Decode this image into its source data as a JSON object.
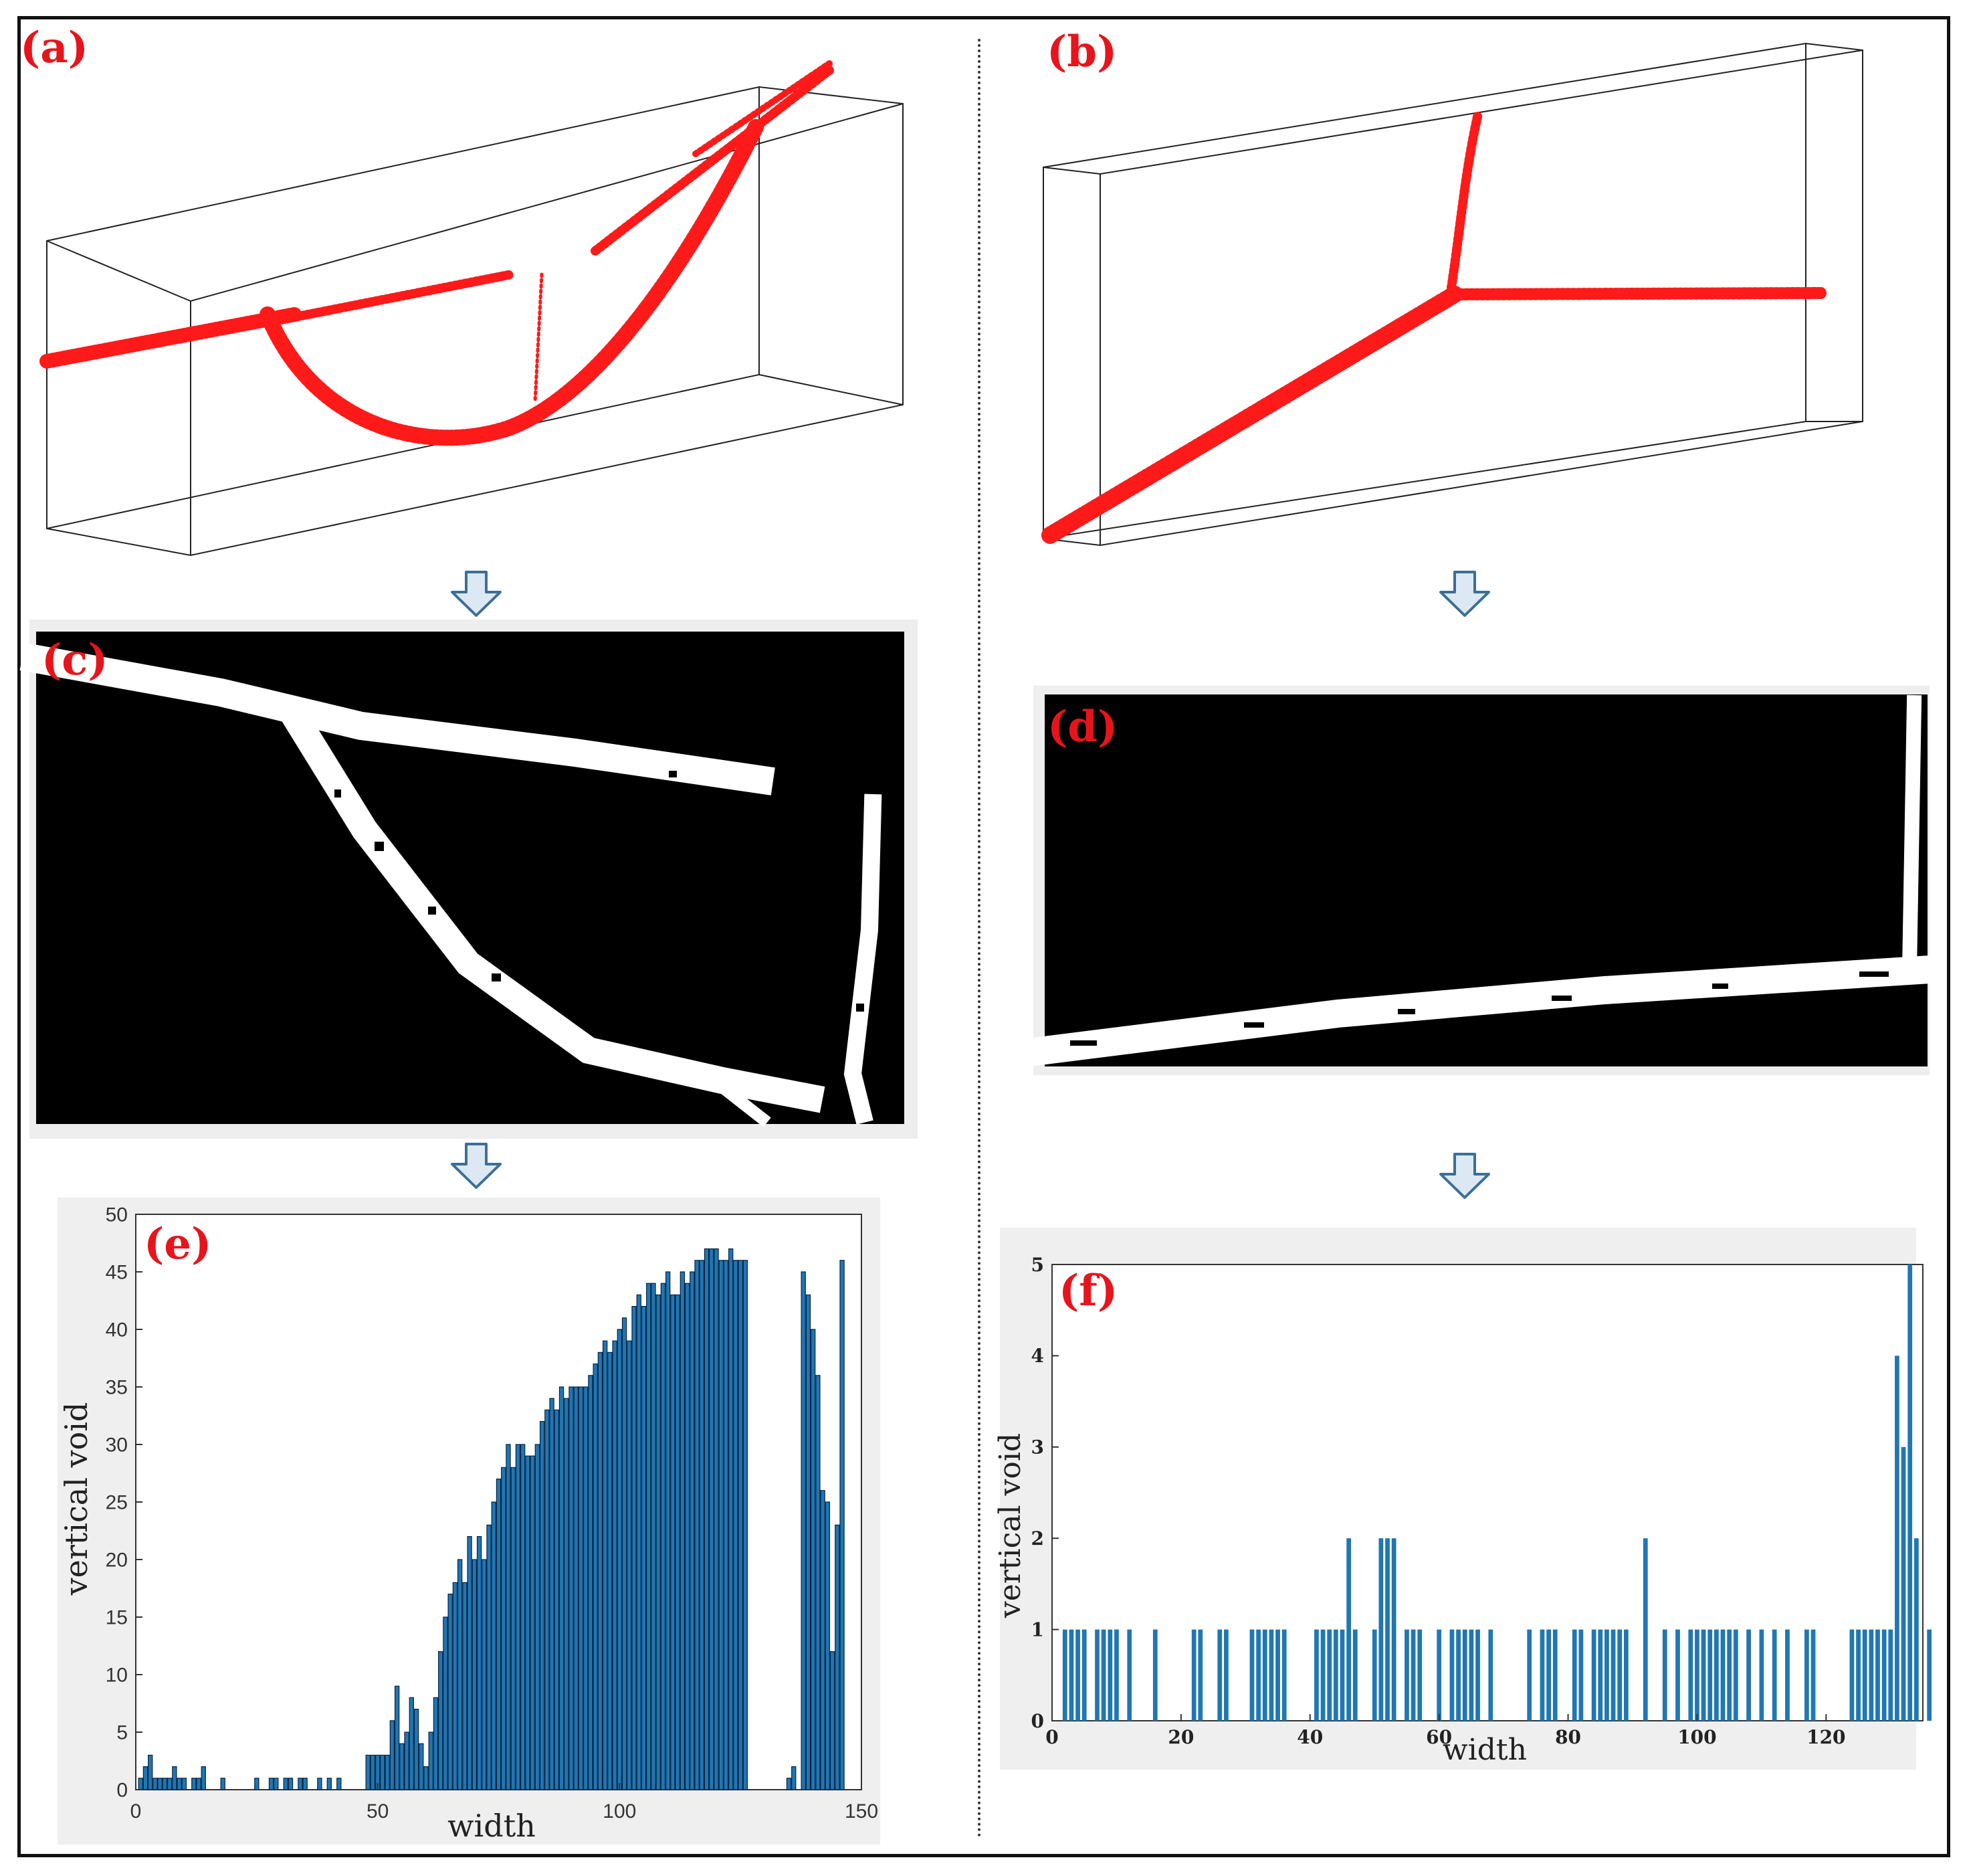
{
  "figure": {
    "panel_labels": {
      "a": "(a)",
      "b": "(b)",
      "c": "(c)",
      "d": "(d)",
      "e": "(e)",
      "f": "(f)"
    },
    "colors": {
      "points": "#ff1a1a",
      "bar_fill": "#1f77b4",
      "bar_edge_e": "#0a2340",
      "label": "#e8141b",
      "arrow_fill": "#dce9f5",
      "arrow_stroke": "#3c6f96"
    },
    "icons": [
      "down-arrow-icon"
    ]
  },
  "chart_data": [
    {
      "id": "e",
      "type": "bar",
      "xlabel": "width",
      "ylabel": "vertical void",
      "xlim": [
        0,
        150
      ],
      "ylim": [
        0,
        50
      ],
      "xticks": [
        0,
        50,
        100,
        150
      ],
      "yticks": [
        0,
        5,
        10,
        15,
        20,
        25,
        30,
        35,
        40,
        45,
        50
      ],
      "x": [
        1,
        2,
        3,
        4,
        5,
        6,
        7,
        8,
        9,
        10,
        12,
        13,
        14,
        18,
        25,
        28,
        29,
        31,
        32,
        34,
        35,
        38,
        40,
        42,
        48,
        49,
        50,
        51,
        52,
        53,
        54,
        55,
        56,
        57,
        58,
        59,
        60,
        61,
        62,
        63,
        64,
        65,
        66,
        67,
        68,
        69,
        70,
        71,
        72,
        73,
        74,
        75,
        76,
        77,
        78,
        79,
        80,
        81,
        82,
        83,
        84,
        85,
        86,
        87,
        88,
        89,
        90,
        91,
        92,
        93,
        94,
        95,
        96,
        97,
        98,
        99,
        100,
        101,
        102,
        103,
        104,
        105,
        106,
        107,
        108,
        109,
        110,
        111,
        112,
        113,
        114,
        115,
        116,
        117,
        118,
        119,
        120,
        121,
        122,
        123,
        124,
        125,
        126,
        135,
        136,
        138,
        139,
        140,
        141,
        142,
        143,
        144,
        145,
        146
      ],
      "values": [
        1,
        2,
        3,
        1,
        1,
        1,
        1,
        2,
        1,
        1,
        1,
        1,
        2,
        1,
        1,
        1,
        1,
        1,
        1,
        1,
        1,
        1,
        1,
        1,
        3,
        3,
        3,
        3,
        3,
        6,
        9,
        4,
        5,
        8,
        7,
        4,
        2,
        5,
        8,
        12,
        15,
        17,
        18,
        20,
        18,
        22,
        20,
        22,
        20,
        23,
        25,
        27,
        28,
        30,
        28,
        30,
        30,
        29,
        29,
        30,
        32,
        33,
        34,
        33,
        35,
        34,
        35,
        35,
        35,
        35,
        36,
        37,
        38,
        39,
        38,
        39,
        40,
        41,
        39,
        42,
        43,
        42,
        44,
        44,
        43,
        44,
        45,
        43,
        43,
        45,
        44,
        45,
        46,
        46,
        47,
        47,
        47,
        46,
        46,
        47,
        46,
        46,
        46,
        1,
        2,
        45,
        43,
        40,
        36,
        26,
        25,
        12,
        23,
        46
      ],
      "bar_width": 0.85
    },
    {
      "id": "f",
      "type": "bar",
      "xlabel": "width",
      "ylabel": "vertical void",
      "xlim": [
        0,
        135
      ],
      "ylim": [
        0,
        5
      ],
      "xticks": [
        0,
        20,
        40,
        60,
        80,
        100,
        120
      ],
      "yticks": [
        0,
        1,
        2,
        3,
        4,
        5
      ],
      "x": [
        2,
        3,
        4,
        5,
        7,
        8,
        9,
        10,
        12,
        16,
        22,
        23,
        26,
        27,
        31,
        32,
        33,
        34,
        35,
        36,
        41,
        42,
        43,
        44,
        45,
        46,
        47,
        50,
        51,
        52,
        53,
        55,
        56,
        57,
        60,
        62,
        63,
        64,
        65,
        66,
        68,
        74,
        76,
        77,
        78,
        81,
        82,
        84,
        85,
        86,
        87,
        88,
        89,
        92,
        95,
        97,
        99,
        100,
        101,
        102,
        103,
        104,
        105,
        106,
        108,
        110,
        112,
        114,
        117,
        118,
        124,
        125,
        126,
        127,
        128,
        129,
        130,
        131,
        132,
        133,
        134,
        136
      ],
      "values": [
        1,
        1,
        1,
        1,
        1,
        1,
        1,
        1,
        1,
        1,
        1,
        1,
        1,
        1,
        1,
        1,
        1,
        1,
        1,
        1,
        1,
        1,
        1,
        1,
        1,
        2,
        1,
        1,
        2,
        2,
        2,
        1,
        1,
        1,
        1,
        1,
        1,
        1,
        1,
        1,
        1,
        1,
        1,
        1,
        1,
        1,
        1,
        1,
        1,
        1,
        1,
        1,
        1,
        2,
        1,
        1,
        1,
        1,
        1,
        1,
        1,
        1,
        1,
        1,
        1,
        1,
        1,
        1,
        1,
        1,
        1,
        1,
        1,
        1,
        1,
        1,
        1,
        4,
        3,
        5,
        2,
        1
      ],
      "bar_width": 0.7
    }
  ]
}
